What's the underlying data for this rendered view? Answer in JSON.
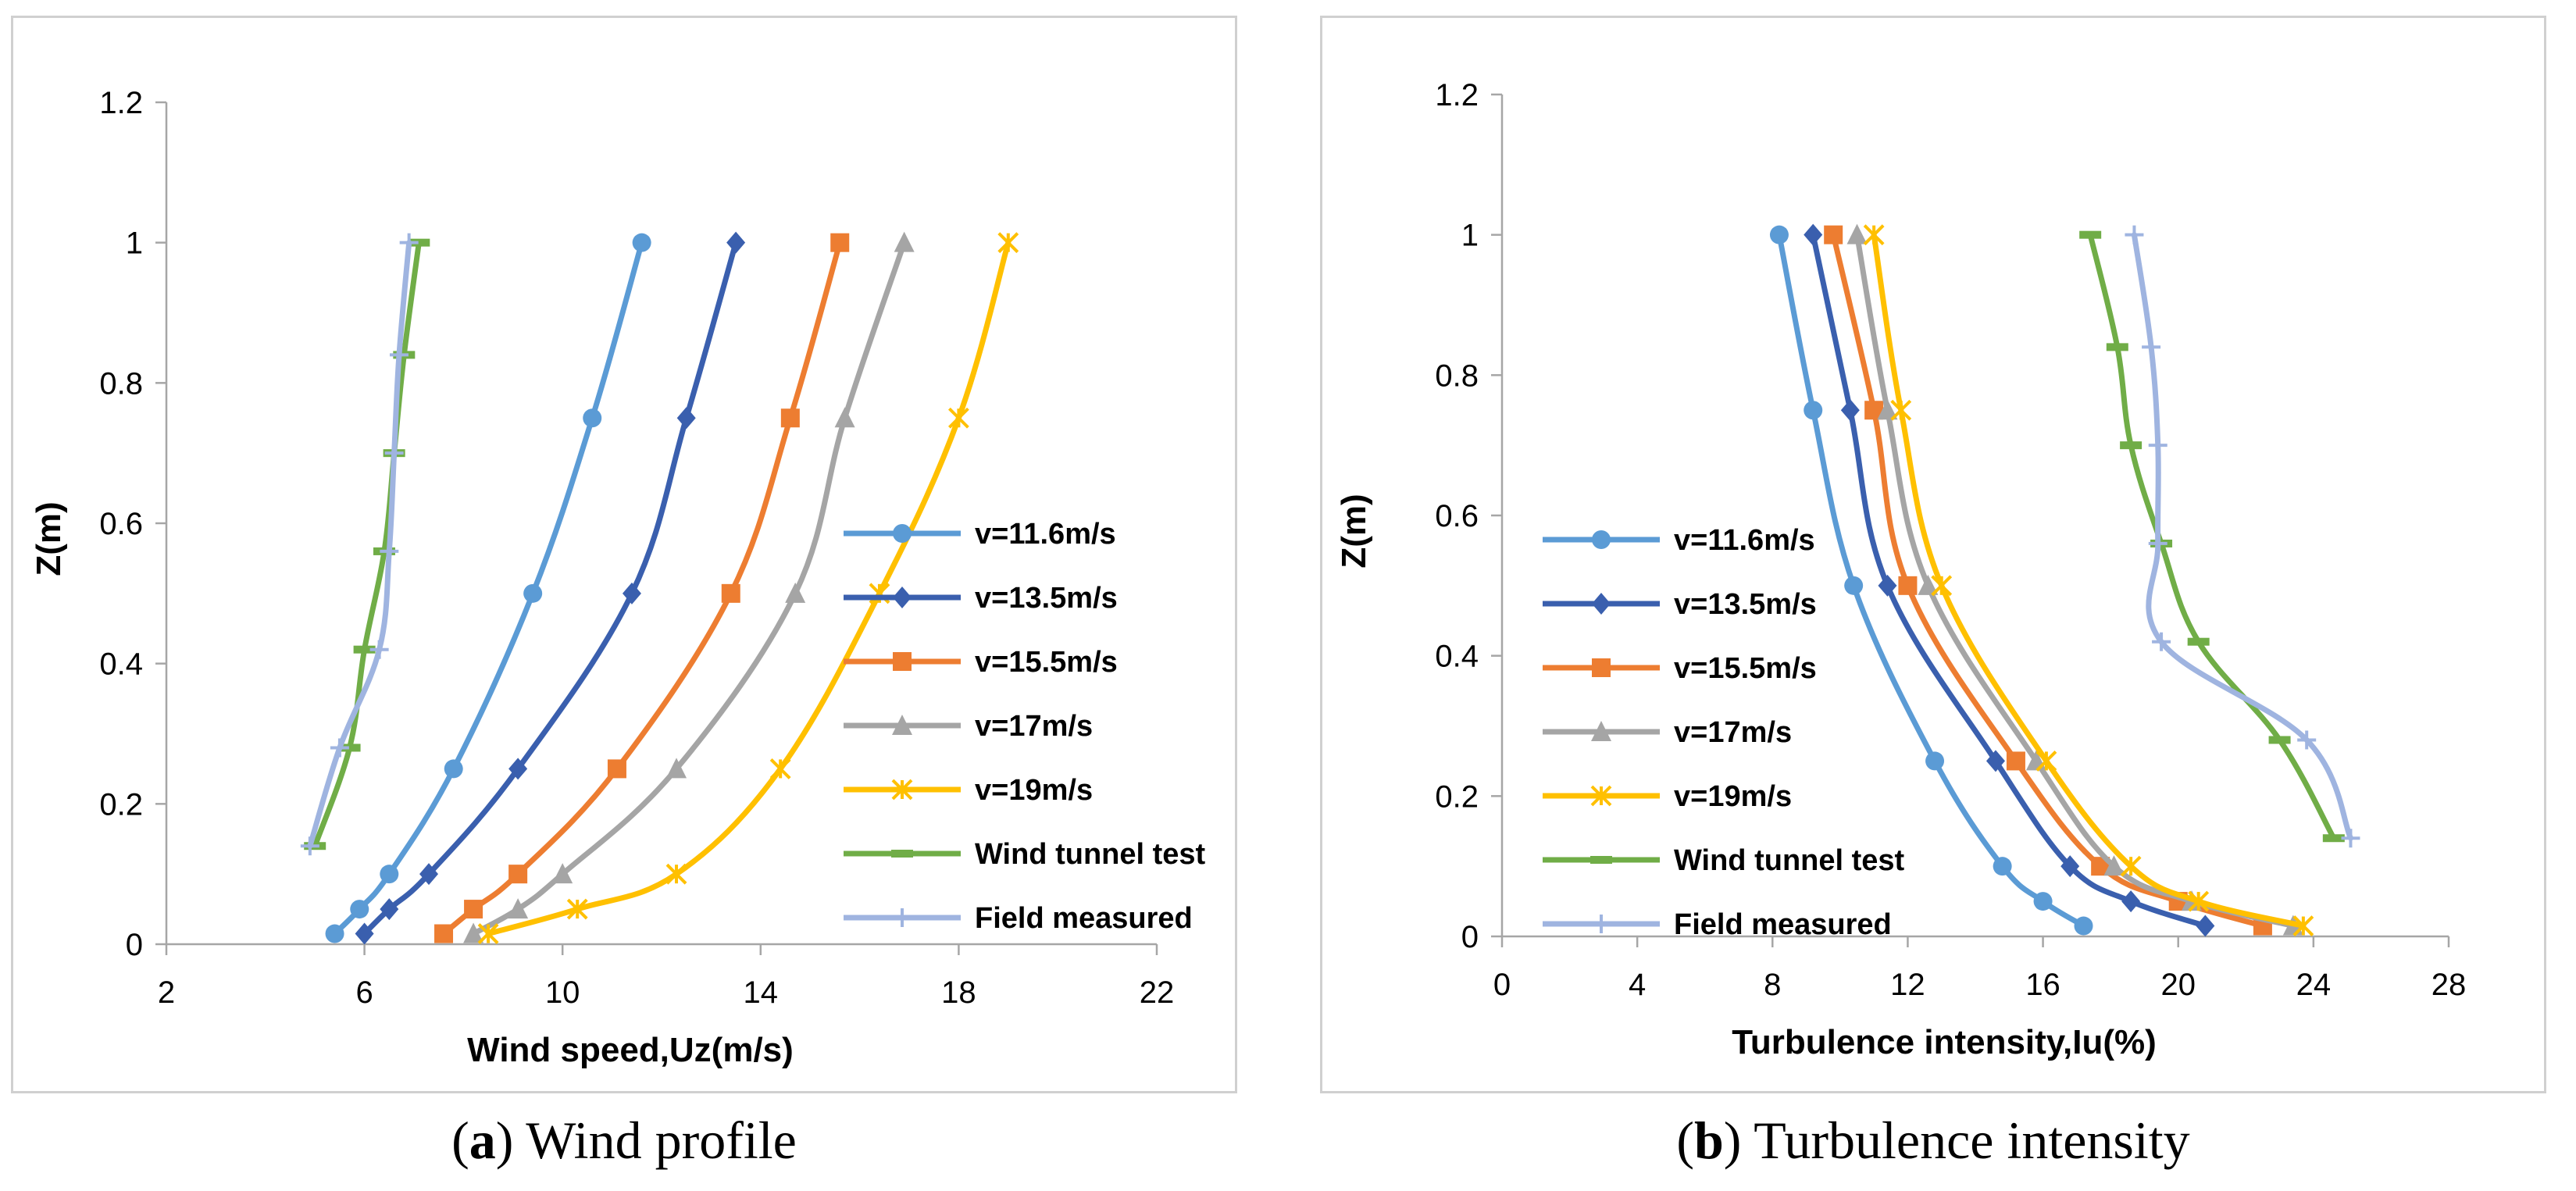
{
  "figures": [
    {
      "id": "a",
      "caption_letter": "a",
      "caption_text": " Wind profile"
    },
    {
      "id": "b",
      "caption_letter": "b",
      "caption_text": " Turbulence intensity"
    }
  ],
  "colors": {
    "v11_6": "#5b9bd5",
    "v13_5": "#3a5fae",
    "v15_5": "#ed7d31",
    "v17": "#a5a5a5",
    "v19": "#ffc000",
    "wind_tunnel": "#70ad47",
    "field": "#9fb4e0"
  },
  "chart_data": [
    {
      "type": "line",
      "title": "",
      "xlabel": "Wind speed,Uz(m/s)",
      "ylabel": "Z(m)",
      "xlim": [
        2,
        22
      ],
      "ylim": [
        0,
        1.2
      ],
      "xticks": [
        "2",
        "6",
        "10",
        "14",
        "18",
        "22"
      ],
      "yticks": [
        "0",
        "0.2",
        "0.4",
        "0.6",
        "0.8",
        "1",
        "1.2"
      ],
      "legend_position": "right",
      "series": [
        {
          "name": "v=11.6m/s",
          "marker": "circle",
          "color": "#5b9bd5",
          "points": [
            [
              5.4,
              0.015
            ],
            [
              5.9,
              0.05
            ],
            [
              6.5,
              0.1
            ],
            [
              7.8,
              0.25
            ],
            [
              9.4,
              0.5
            ],
            [
              10.6,
              0.75
            ],
            [
              11.6,
              1.0
            ]
          ]
        },
        {
          "name": "v=13.5m/s",
          "marker": "diamond",
          "color": "#3a5fae",
          "points": [
            [
              6.0,
              0.015
            ],
            [
              6.5,
              0.05
            ],
            [
              7.3,
              0.1
            ],
            [
              9.1,
              0.25
            ],
            [
              11.4,
              0.5
            ],
            [
              12.5,
              0.75
            ],
            [
              13.5,
              1.0
            ]
          ]
        },
        {
          "name": "v=15.5m/s",
          "marker": "square",
          "color": "#ed7d31",
          "points": [
            [
              7.6,
              0.015
            ],
            [
              8.2,
              0.05
            ],
            [
              9.1,
              0.1
            ],
            [
              11.1,
              0.25
            ],
            [
              13.4,
              0.5
            ],
            [
              14.6,
              0.75
            ],
            [
              15.6,
              1.0
            ]
          ]
        },
        {
          "name": "v=17m/s",
          "marker": "triangle",
          "color": "#a5a5a5",
          "points": [
            [
              8.2,
              0.015
            ],
            [
              9.1,
              0.05
            ],
            [
              10.0,
              0.1
            ],
            [
              12.3,
              0.25
            ],
            [
              14.7,
              0.5
            ],
            [
              15.7,
              0.75
            ],
            [
              16.9,
              1.0
            ]
          ]
        },
        {
          "name": "v=19m/s",
          "marker": "x",
          "color": "#ffc000",
          "points": [
            [
              8.5,
              0.015
            ],
            [
              10.3,
              0.05
            ],
            [
              12.3,
              0.1
            ],
            [
              14.4,
              0.25
            ],
            [
              16.4,
              0.5
            ],
            [
              18.0,
              0.75
            ],
            [
              19.0,
              1.0
            ]
          ]
        },
        {
          "name": "Wind tunnel test",
          "marker": "dash",
          "color": "#70ad47",
          "points": [
            [
              5.0,
              0.14
            ],
            [
              5.7,
              0.28
            ],
            [
              6.0,
              0.42
            ],
            [
              6.4,
              0.56
            ],
            [
              6.6,
              0.7
            ],
            [
              6.8,
              0.84
            ],
            [
              7.1,
              1.0
            ]
          ]
        },
        {
          "name": "Field measured",
          "marker": "plus",
          "color": "#9fb4e0",
          "points": [
            [
              4.9,
              0.14
            ],
            [
              5.5,
              0.28
            ],
            [
              6.3,
              0.42
            ],
            [
              6.5,
              0.56
            ],
            [
              6.6,
              0.7
            ],
            [
              6.7,
              0.84
            ],
            [
              6.9,
              1.0
            ]
          ]
        }
      ]
    },
    {
      "type": "line",
      "title": "",
      "xlabel": "Turbulence intensity,Iu(%)",
      "ylabel": "Z(m)",
      "xlim": [
        0,
        28
      ],
      "ylim": [
        0,
        1.2
      ],
      "xticks": [
        "0",
        "4",
        "8",
        "12",
        "16",
        "20",
        "24",
        "28"
      ],
      "yticks": [
        "0",
        "0.2",
        "0.4",
        "0.6",
        "0.8",
        "1",
        "1.2"
      ],
      "legend_position": "left",
      "series": [
        {
          "name": "v=11.6m/s",
          "marker": "circle",
          "color": "#5b9bd5",
          "points": [
            [
              17.2,
              0.015
            ],
            [
              16.0,
              0.05
            ],
            [
              14.8,
              0.1
            ],
            [
              12.8,
              0.25
            ],
            [
              10.4,
              0.5
            ],
            [
              9.2,
              0.75
            ],
            [
              8.2,
              1.0
            ]
          ]
        },
        {
          "name": "v=13.5m/s",
          "marker": "diamond",
          "color": "#3a5fae",
          "points": [
            [
              20.8,
              0.015
            ],
            [
              18.6,
              0.05
            ],
            [
              16.8,
              0.1
            ],
            [
              14.6,
              0.25
            ],
            [
              11.4,
              0.5
            ],
            [
              10.3,
              0.75
            ],
            [
              9.2,
              1.0
            ]
          ]
        },
        {
          "name": "v=15.5m/s",
          "marker": "square",
          "color": "#ed7d31",
          "points": [
            [
              22.5,
              0.015
            ],
            [
              20.0,
              0.05
            ],
            [
              17.7,
              0.1
            ],
            [
              15.2,
              0.25
            ],
            [
              12.0,
              0.5
            ],
            [
              11.0,
              0.75
            ],
            [
              9.8,
              1.0
            ]
          ]
        },
        {
          "name": "v=17m/s",
          "marker": "triangle",
          "color": "#a5a5a5",
          "points": [
            [
              23.4,
              0.015
            ],
            [
              20.4,
              0.05
            ],
            [
              18.1,
              0.1
            ],
            [
              15.8,
              0.25
            ],
            [
              12.6,
              0.5
            ],
            [
              11.4,
              0.75
            ],
            [
              10.5,
              1.0
            ]
          ]
        },
        {
          "name": "v=19m/s",
          "marker": "x",
          "color": "#ffc000",
          "points": [
            [
              23.7,
              0.015
            ],
            [
              20.6,
              0.05
            ],
            [
              18.6,
              0.1
            ],
            [
              16.1,
              0.25
            ],
            [
              13.0,
              0.5
            ],
            [
              11.8,
              0.75
            ],
            [
              11.0,
              1.0
            ]
          ]
        },
        {
          "name": "Wind tunnel test",
          "marker": "dash",
          "color": "#70ad47",
          "points": [
            [
              24.6,
              0.14
            ],
            [
              23.0,
              0.28
            ],
            [
              20.6,
              0.42
            ],
            [
              19.5,
              0.56
            ],
            [
              18.6,
              0.7
            ],
            [
              18.2,
              0.84
            ],
            [
              17.4,
              1.0
            ]
          ]
        },
        {
          "name": "Field measured",
          "marker": "plus",
          "color": "#9fb4e0",
          "points": [
            [
              25.1,
              0.14
            ],
            [
              23.8,
              0.28
            ],
            [
              19.5,
              0.42
            ],
            [
              19.4,
              0.56
            ],
            [
              19.4,
              0.7
            ],
            [
              19.2,
              0.84
            ],
            [
              18.7,
              1.0
            ]
          ]
        }
      ]
    }
  ]
}
